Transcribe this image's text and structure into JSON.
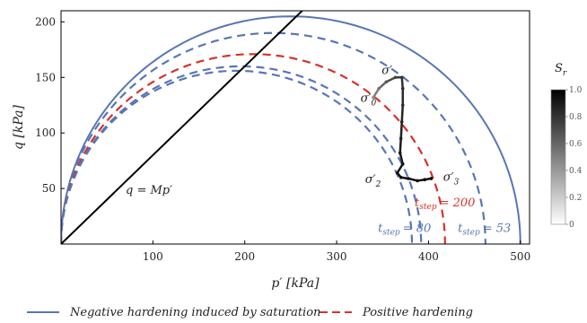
{
  "chart_data": {
    "type": "line",
    "xlabel": "p′ [kPa]",
    "ylabel": "q [kPa]",
    "xlim": [
      0,
      510
    ],
    "ylim": [
      0,
      210
    ],
    "x_ticks": [
      100,
      200,
      300,
      400,
      500
    ],
    "y_ticks": [
      50,
      100,
      150,
      200
    ],
    "x_tick_labels": [
      "100",
      "200",
      "300",
      "400",
      "500"
    ],
    "y_tick_labels": [
      "50",
      "100",
      "150",
      "200"
    ],
    "M": 0.8,
    "critical_state_label": "q = Mp′",
    "colors": {
      "blue": "#5876b5",
      "red": "#d8312a",
      "black": "#000000"
    },
    "yield_surfaces": [
      {
        "p0": 500,
        "q_peak": 205,
        "style": "solid",
        "color": "blue"
      },
      {
        "p0": 462,
        "q_peak": 190,
        "style": "dashed",
        "color": "blue"
      },
      {
        "p0": 418,
        "q_peak": 171,
        "style": "dashed",
        "color": "red"
      },
      {
        "p0": 392,
        "q_peak": 160,
        "style": "dashed",
        "color": "blue"
      },
      {
        "p0": 382,
        "q_peak": 156,
        "style": "dashed",
        "color": "blue"
      }
    ],
    "curve_labels": [
      {
        "text": "t_step = 200",
        "sub": "step",
        "main": "t",
        "value": "= 200",
        "x": 385,
        "y": 34,
        "color": "red"
      },
      {
        "text": "t_step = 80",
        "sub": "step",
        "main": "t",
        "value": "= 80",
        "x": 345,
        "y": 11,
        "color": "blue"
      },
      {
        "text": "t_step = 53",
        "sub": "step",
        "main": "t",
        "value": "= 53",
        "x": 432,
        "y": 11,
        "color": "blue"
      }
    ],
    "stress_path": [
      {
        "p": 340,
        "q": 132,
        "sr": 0.45
      },
      {
        "p": 346,
        "q": 140,
        "sr": 0.55
      },
      {
        "p": 354,
        "q": 146,
        "sr": 0.65
      },
      {
        "p": 364,
        "q": 150,
        "sr": 0.75
      },
      {
        "p": 371,
        "q": 150,
        "sr": 0.8
      },
      {
        "p": 372,
        "q": 140,
        "sr": 0.82
      },
      {
        "p": 372,
        "q": 125,
        "sr": 0.84
      },
      {
        "p": 371,
        "q": 110,
        "sr": 0.86
      },
      {
        "p": 370,
        "q": 95,
        "sr": 0.88
      },
      {
        "p": 369,
        "q": 82,
        "sr": 0.9
      },
      {
        "p": 372,
        "q": 72,
        "sr": 0.92
      },
      {
        "p": 366,
        "q": 64,
        "sr": 0.93
      },
      {
        "p": 370,
        "q": 60,
        "sr": 0.94
      },
      {
        "p": 378,
        "q": 59,
        "sr": 0.95
      },
      {
        "p": 388,
        "q": 57,
        "sr": 0.96
      },
      {
        "p": 396,
        "q": 58,
        "sr": 0.97
      },
      {
        "p": 403,
        "q": 59,
        "sr": 0.98
      }
    ],
    "stress_points": [
      {
        "label": "σ′",
        "sub": "0",
        "p": 326,
        "q": 128
      },
      {
        "label": "σ′",
        "sub": "",
        "p": 349,
        "q": 153
      },
      {
        "label": "σ′",
        "sub": "2",
        "p": 331,
        "q": 55
      },
      {
        "label": "σ′",
        "sub": "3",
        "p": 416,
        "q": 57
      }
    ],
    "colorbar": {
      "label": "S_r",
      "main": "S",
      "sub": "r",
      "ticks": [
        0,
        0.2,
        0.4,
        0.6,
        0.8,
        1.0
      ],
      "tick_labels": [
        "0",
        "0.2",
        "0.4",
        "0.6",
        "0.8",
        "1.0"
      ]
    },
    "legend": [
      {
        "label": "Negative hardening induced by saturation",
        "color": "blue",
        "style": "solid"
      },
      {
        "label": "Positive hardening",
        "color": "red",
        "style": "dashed"
      }
    ]
  }
}
